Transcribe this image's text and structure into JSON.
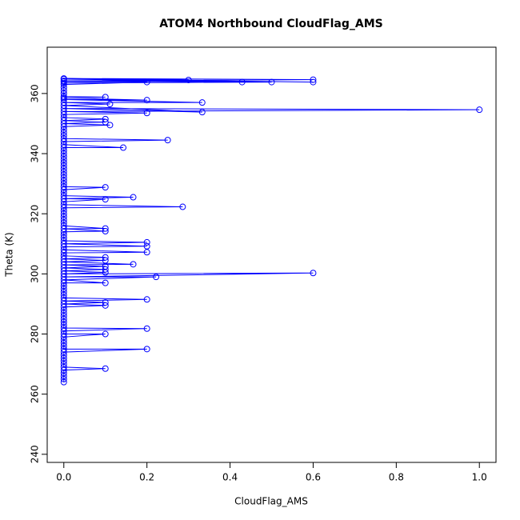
{
  "chart_data": {
    "type": "line",
    "markers": "open-circle",
    "title": "ATOM4 Northbound CloudFlag_AMS",
    "x_label": "CloudFlag_AMS",
    "y_label": "Theta (K)",
    "xlim": [
      -0.04,
      1.04
    ],
    "ylim": [
      237.3,
      375.4
    ],
    "xticks": [
      {
        "value": 0,
        "label": "0.0"
      },
      0.2,
      0.4,
      0.6,
      0.8,
      {
        "value": 1,
        "label": "1.0"
      }
    ],
    "yticks": [
      240,
      260,
      280,
      300,
      320,
      340,
      360
    ],
    "x": [
      0,
      0,
      0,
      0,
      0,
      0.1,
      0,
      0,
      0,
      0,
      0,
      0,
      0.2,
      0,
      0,
      0,
      0,
      0,
      0.1,
      0,
      0,
      0.2,
      0,
      0,
      0,
      0,
      0,
      0,
      0,
      0,
      0.1,
      0,
      0.1,
      0,
      0.2,
      0,
      0,
      0,
      0,
      0,
      0,
      0.1,
      0,
      0.222,
      0,
      0.6,
      0,
      0.1,
      0,
      0.1,
      0,
      0.1,
      0,
      0.167,
      0,
      0.1,
      0,
      0.1,
      0,
      0,
      0.2,
      0,
      0,
      0.2,
      0,
      0.2,
      0,
      0,
      0,
      0,
      0.1,
      0,
      0.1,
      0,
      0,
      0,
      0,
      0,
      0,
      0,
      0.286,
      0,
      0,
      0.1,
      0,
      0.167,
      0,
      0,
      0,
      0.1,
      0,
      0,
      0,
      0,
      0,
      0,
      0,
      0,
      0,
      0,
      0,
      0,
      0,
      0,
      0.143,
      0,
      0,
      0.25,
      0,
      0,
      0,
      0,
      0,
      0.111,
      0,
      0.1,
      0,
      0.1,
      0,
      0,
      0.2,
      0,
      1,
      0,
      0.333,
      0,
      0.111,
      0,
      0.333,
      0,
      0.2,
      0,
      0.1,
      0,
      0,
      0,
      0,
      0,
      0.2,
      0,
      0.3,
      0,
      0.6,
      0,
      0.5,
      0,
      0.429,
      0,
      0.6
    ],
    "series": [
      {
        "color": "#0000ff",
        "values": [
          264,
          265,
          266,
          267,
          268,
          268.5,
          269,
          270,
          271,
          272,
          273,
          274,
          275,
          275,
          276,
          277,
          278,
          279,
          280,
          280,
          281,
          281.8,
          282,
          283,
          284,
          285,
          286,
          287,
          288,
          289,
          289.5,
          290,
          290.5,
          291,
          291.5,
          292,
          293,
          294,
          295,
          296,
          297,
          297,
          298,
          299,
          299,
          300.3,
          300,
          300.5,
          301,
          301.5,
          302,
          302.5,
          303,
          303.2,
          304,
          304.5,
          305,
          305.5,
          306,
          307,
          307.2,
          308,
          309,
          309.2,
          310,
          310.5,
          311,
          312,
          313,
          314,
          314.2,
          315,
          315.1,
          316,
          317,
          318,
          319,
          320,
          321,
          322,
          322.3,
          323,
          324,
          324.8,
          325,
          325.5,
          326,
          327,
          328,
          328.8,
          329,
          330,
          331,
          332,
          333,
          334,
          335,
          336,
          337,
          338,
          339,
          340,
          341,
          342,
          342,
          343,
          344,
          344.5,
          345,
          346,
          347,
          348,
          349,
          349.5,
          350,
          350.5,
          351,
          351.5,
          352,
          353,
          353.5,
          354,
          354.6,
          355,
          353.8,
          356,
          356.5,
          357,
          357,
          358,
          357.8,
          358.5,
          358.8,
          359,
          360,
          361,
          362,
          363,
          363.8,
          364,
          364.5,
          365,
          364.6,
          364.2,
          363.8,
          363.5,
          363.8,
          364.8,
          363.8
        ]
      }
    ]
  }
}
